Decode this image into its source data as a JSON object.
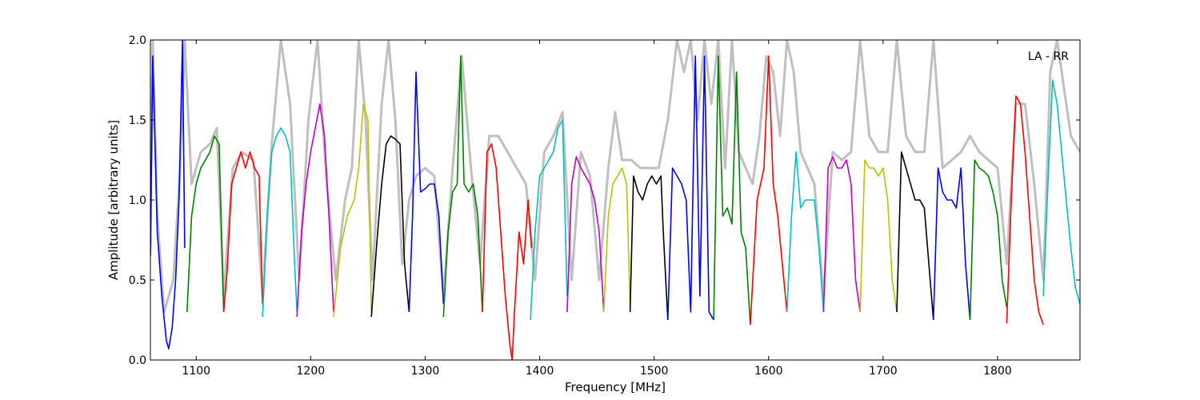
{
  "chart_data": {
    "type": "line",
    "title": "",
    "xlabel": "Frequency [MHz]",
    "ylabel": "Amplitude [arbitrary units]",
    "annotation": "LA - RR",
    "xlim": [
      1060,
      1872
    ],
    "ylim": [
      0.0,
      2.0
    ],
    "x_ticks": [
      1100,
      1200,
      1300,
      1400,
      1500,
      1600,
      1700,
      1800
    ],
    "y_ticks": [
      0.0,
      0.5,
      1.0,
      1.5,
      2.0
    ],
    "x_tick_labels": [
      "1100",
      "1200",
      "1300",
      "1400",
      "1500",
      "1600",
      "1700",
      "1800"
    ],
    "y_tick_labels": [
      "0.0",
      "0.5",
      "1.0",
      "1.5",
      "2.0"
    ],
    "grid": false,
    "legend": "none",
    "raw_color": "#bfbfbf",
    "series": [
      {
        "color": "#0000ff",
        "x": [
          1060,
          1062,
          1066,
          1070,
          1074,
          1076,
          1079,
          1082,
          1085,
          1088,
          1090
        ],
        "y": [
          0.65,
          1.9,
          0.8,
          0.4,
          0.12,
          0.07,
          0.2,
          0.5,
          1.0,
          2.0,
          0.7
        ]
      },
      {
        "color": "#008000",
        "x": [
          1092,
          1096,
          1100,
          1104,
          1108,
          1112,
          1116,
          1120,
          1124
        ],
        "y": [
          0.3,
          0.9,
          1.1,
          1.2,
          1.25,
          1.3,
          1.4,
          1.35,
          0.3
        ]
      },
      {
        "color": "#ff0000",
        "x": [
          1124,
          1127,
          1131,
          1135,
          1139,
          1143,
          1147,
          1151,
          1155,
          1158
        ],
        "y": [
          0.3,
          0.55,
          1.1,
          1.2,
          1.3,
          1.2,
          1.3,
          1.2,
          1.15,
          0.35
        ]
      },
      {
        "color": "#00bfbf",
        "x": [
          1158,
          1162,
          1166,
          1170,
          1174,
          1178,
          1182,
          1186,
          1188
        ],
        "y": [
          0.27,
          0.9,
          1.3,
          1.4,
          1.45,
          1.4,
          1.3,
          0.6,
          0.3
        ]
      },
      {
        "color": "#bf00bf",
        "x": [
          1188,
          1192,
          1196,
          1200,
          1204,
          1208,
          1212,
          1216,
          1220
        ],
        "y": [
          0.27,
          0.8,
          1.1,
          1.3,
          1.45,
          1.6,
          1.4,
          0.9,
          0.3
        ]
      },
      {
        "color": "#bfbf00",
        "x": [
          1220,
          1226,
          1232,
          1238,
          1242,
          1246,
          1250,
          1253
        ],
        "y": [
          0.27,
          0.7,
          0.9,
          1.0,
          1.2,
          1.6,
          1.5,
          0.3
        ]
      },
      {
        "color": "#000000",
        "x": [
          1253,
          1258,
          1262,
          1266,
          1270,
          1274,
          1278,
          1282,
          1286
        ],
        "y": [
          0.27,
          0.75,
          1.1,
          1.35,
          1.4,
          1.38,
          1.35,
          0.6,
          0.3
        ]
      },
      {
        "color": "#0000ff",
        "x": [
          1286,
          1289,
          1292,
          1296,
          1300,
          1304,
          1308,
          1312,
          1316
        ],
        "y": [
          0.3,
          0.9,
          1.8,
          1.05,
          1.07,
          1.1,
          1.1,
          0.9,
          0.35
        ]
      },
      {
        "color": "#008000",
        "x": [
          1316,
          1320,
          1324,
          1328,
          1331,
          1334,
          1338,
          1342,
          1346,
          1350
        ],
        "y": [
          0.27,
          0.8,
          1.05,
          1.1,
          1.9,
          1.1,
          1.05,
          1.1,
          0.9,
          0.3
        ]
      },
      {
        "color": "#ff0000",
        "x": [
          1350,
          1354,
          1358,
          1362,
          1366,
          1370,
          1374,
          1376,
          1378,
          1382,
          1386,
          1390,
          1393
        ],
        "y": [
          0.3,
          1.3,
          1.35,
          1.2,
          0.8,
          0.4,
          0.1,
          0.0,
          0.3,
          0.8,
          0.6,
          1.0,
          0.7
        ]
      },
      {
        "color": "#00bfbf",
        "x": [
          1392,
          1396,
          1400,
          1404,
          1408,
          1412,
          1416,
          1420,
          1424
        ],
        "y": [
          0.25,
          0.8,
          1.15,
          1.2,
          1.25,
          1.3,
          1.45,
          1.5,
          0.4
        ]
      },
      {
        "color": "#bf00bf",
        "x": [
          1424,
          1428,
          1432,
          1436,
          1440,
          1444,
          1448,
          1452,
          1456
        ],
        "y": [
          0.3,
          1.1,
          1.27,
          1.2,
          1.15,
          1.1,
          1.0,
          0.8,
          0.3
        ]
      },
      {
        "color": "#bfbf00",
        "x": [
          1456,
          1460,
          1464,
          1468,
          1472,
          1476,
          1479
        ],
        "y": [
          0.3,
          0.9,
          1.1,
          1.15,
          1.2,
          1.1,
          0.35
        ]
      },
      {
        "color": "#000000",
        "x": [
          1479,
          1482,
          1486,
          1490,
          1494,
          1498,
          1502,
          1506,
          1508,
          1512
        ],
        "y": [
          0.3,
          1.15,
          1.05,
          1.0,
          1.1,
          1.15,
          1.1,
          1.15,
          0.8,
          0.25
        ]
      },
      {
        "color": "#0000ff",
        "x": [
          1512,
          1516,
          1520,
          1524,
          1528,
          1532,
          1536,
          1540,
          1544,
          1548,
          1552
        ],
        "y": [
          0.25,
          1.2,
          1.15,
          1.1,
          1.0,
          0.3,
          1.9,
          0.4,
          1.9,
          0.3,
          0.25
        ]
      },
      {
        "color": "#008000",
        "x": [
          1552,
          1556,
          1560,
          1564,
          1568,
          1572,
          1576,
          1580,
          1584
        ],
        "y": [
          0.25,
          1.9,
          0.9,
          0.95,
          0.85,
          1.8,
          0.8,
          0.7,
          0.22
        ]
      },
      {
        "color": "#ff0000",
        "x": [
          1584,
          1590,
          1596,
          1600,
          1604,
          1608,
          1612,
          1616
        ],
        "y": [
          0.22,
          1.0,
          1.2,
          1.9,
          1.1,
          0.9,
          0.6,
          0.3
        ]
      },
      {
        "color": "#00bfbf",
        "x": [
          1616,
          1620,
          1624,
          1628,
          1632,
          1636,
          1640,
          1644,
          1648
        ],
        "y": [
          0.3,
          0.9,
          1.3,
          0.95,
          1.0,
          1.0,
          1.0,
          0.7,
          0.3
        ]
      },
      {
        "color": "#bf00bf",
        "x": [
          1648,
          1652,
          1656,
          1660,
          1664,
          1668,
          1672,
          1676,
          1680
        ],
        "y": [
          0.3,
          1.2,
          1.27,
          1.2,
          1.2,
          1.25,
          1.1,
          0.5,
          0.3
        ]
      },
      {
        "color": "#bfbf00",
        "x": [
          1680,
          1684,
          1688,
          1692,
          1696,
          1700,
          1704,
          1708,
          1712
        ],
        "y": [
          0.3,
          1.25,
          1.2,
          1.2,
          1.15,
          1.2,
          1.0,
          0.5,
          0.3
        ]
      },
      {
        "color": "#000000",
        "x": [
          1712,
          1716,
          1720,
          1724,
          1728,
          1732,
          1736,
          1740,
          1744
        ],
        "y": [
          0.3,
          1.3,
          1.2,
          1.1,
          1.0,
          1.0,
          0.95,
          0.6,
          0.25
        ]
      },
      {
        "color": "#0000ff",
        "x": [
          1744,
          1748,
          1752,
          1756,
          1760,
          1764,
          1768,
          1772,
          1776
        ],
        "y": [
          0.25,
          1.2,
          1.05,
          1.0,
          1.0,
          0.95,
          1.2,
          0.6,
          0.25
        ]
      },
      {
        "color": "#008000",
        "x": [
          1776,
          1780,
          1784,
          1788,
          1792,
          1796,
          1800,
          1804,
          1808
        ],
        "y": [
          0.25,
          1.25,
          1.2,
          1.18,
          1.15,
          1.05,
          0.9,
          0.5,
          0.33
        ]
      },
      {
        "color": "#ff0000",
        "x": [
          1808,
          1812,
          1816,
          1820,
          1824,
          1828,
          1832,
          1836,
          1840
        ],
        "y": [
          0.23,
          1.0,
          1.65,
          1.6,
          1.3,
          0.9,
          0.5,
          0.3,
          0.22
        ]
      },
      {
        "color": "#00bfbf",
        "x": [
          1840,
          1844,
          1848,
          1852,
          1856,
          1860,
          1864,
          1868,
          1872
        ],
        "y": [
          0.4,
          1.1,
          1.75,
          1.6,
          1.3,
          1.0,
          0.7,
          0.45,
          0.35
        ]
      }
    ],
    "raw_points": {
      "x": [
        1060,
        1062,
        1066,
        1072,
        1080,
        1086,
        1090,
        1096,
        1104,
        1112,
        1118,
        1124,
        1132,
        1140,
        1150,
        1158,
        1166,
        1174,
        1182,
        1190,
        1198,
        1206,
        1214,
        1222,
        1230,
        1236,
        1242,
        1248,
        1254,
        1262,
        1268,
        1274,
        1280,
        1286,
        1292,
        1300,
        1308,
        1316,
        1324,
        1332,
        1340,
        1348,
        1356,
        1364,
        1372,
        1380,
        1388,
        1396,
        1404,
        1412,
        1420,
        1428,
        1436,
        1444,
        1452,
        1460,
        1466,
        1472,
        1480,
        1488,
        1496,
        1504,
        1512,
        1520,
        1526,
        1532,
        1538,
        1544,
        1550,
        1556,
        1562,
        1568,
        1574,
        1580,
        1586,
        1592,
        1598,
        1604,
        1610,
        1616,
        1622,
        1628,
        1634,
        1640,
        1648,
        1656,
        1664,
        1672,
        1680,
        1688,
        1696,
        1704,
        1712,
        1720,
        1728,
        1736,
        1744,
        1752,
        1760,
        1768,
        1776,
        1784,
        1792,
        1800,
        1808,
        1816,
        1824,
        1832,
        1840,
        1846,
        1852,
        1858,
        1864,
        1872
      ],
      "y": [
        0.7,
        2.0,
        0.9,
        0.3,
        0.5,
        1.2,
        2.0,
        1.1,
        1.3,
        1.35,
        1.45,
        0.4,
        1.2,
        1.3,
        1.25,
        0.4,
        1.35,
        2.0,
        1.6,
        0.5,
        1.5,
        2.0,
        1.1,
        0.5,
        1.0,
        1.2,
        2.0,
        1.5,
        0.5,
        1.6,
        2.0,
        1.5,
        0.6,
        1.0,
        1.15,
        1.2,
        1.15,
        0.4,
        1.2,
        1.9,
        1.2,
        0.6,
        1.4,
        1.4,
        1.3,
        1.2,
        1.1,
        0.5,
        1.3,
        1.4,
        1.55,
        0.5,
        1.3,
        1.15,
        0.5,
        1.2,
        1.55,
        1.25,
        1.25,
        1.2,
        1.2,
        1.2,
        1.5,
        2.0,
        1.8,
        2.0,
        1.5,
        2.0,
        1.6,
        2.0,
        1.2,
        2.0,
        1.3,
        1.2,
        1.1,
        1.4,
        1.9,
        1.8,
        1.4,
        2.0,
        1.8,
        1.3,
        1.2,
        1.1,
        0.4,
        1.3,
        1.25,
        1.3,
        2.0,
        1.4,
        1.3,
        1.3,
        2.0,
        1.4,
        1.3,
        1.3,
        2.0,
        1.2,
        1.25,
        1.3,
        1.4,
        1.3,
        1.25,
        1.2,
        0.6,
        1.6,
        1.6,
        1.1,
        0.5,
        1.8,
        2.0,
        1.7,
        1.4,
        1.3
      ]
    }
  }
}
